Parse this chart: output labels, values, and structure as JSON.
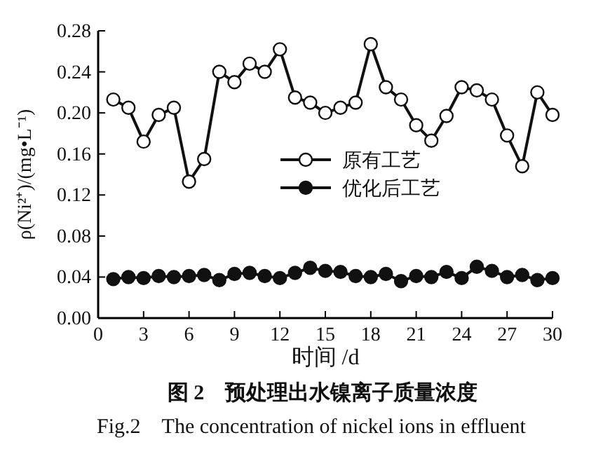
{
  "chart_data": {
    "type": "line",
    "title": "图 2　预处理出水镍离子质量浓度",
    "subtitle": "Fig.2　The concentration of nickel ions in effluent",
    "xlabel": "时间 /d",
    "ylabel": "ρ(Ni²⁺)/(mg•L⁻¹)",
    "x": [
      1,
      2,
      3,
      4,
      5,
      6,
      7,
      8,
      9,
      10,
      11,
      12,
      13,
      14,
      15,
      16,
      17,
      18,
      19,
      20,
      21,
      22,
      23,
      24,
      25,
      26,
      27,
      28,
      29,
      30
    ],
    "series": [
      {
        "name": "原有工艺",
        "color": "#111111",
        "marker": "circle",
        "values": [
          0.213,
          0.205,
          0.172,
          0.198,
          0.205,
          0.133,
          0.155,
          0.24,
          0.23,
          0.248,
          0.24,
          0.262,
          0.215,
          0.21,
          0.2,
          0.205,
          0.21,
          0.267,
          0.225,
          0.213,
          0.188,
          0.173,
          0.197,
          0.225,
          0.222,
          0.213,
          0.178,
          0.148,
          0.22,
          0.198
        ]
      },
      {
        "name": "优化后工艺",
        "color": "#111111",
        "marker": "circle",
        "values": [
          0.038,
          0.04,
          0.039,
          0.041,
          0.04,
          0.041,
          0.042,
          0.037,
          0.043,
          0.044,
          0.041,
          0.039,
          0.044,
          0.049,
          0.046,
          0.045,
          0.041,
          0.04,
          0.043,
          0.036,
          0.041,
          0.04,
          0.045,
          0.039,
          0.05,
          0.046,
          0.04,
          0.042,
          0.037,
          0.039
        ]
      }
    ],
    "xlim": [
      0,
      30
    ],
    "xticks": [
      0,
      3,
      6,
      9,
      12,
      15,
      18,
      21,
      24,
      27,
      30
    ],
    "ylim": [
      0,
      0.28
    ],
    "yticks": [
      {
        "value": 0,
        "label": "0.00"
      },
      {
        "value": 0.04,
        "label": "0.04"
      },
      {
        "value": 0.08,
        "label": "0.08"
      },
      {
        "value": 0.12,
        "label": "0.12"
      },
      {
        "value": 0.16,
        "label": "0.16"
      },
      {
        "value": 0.2,
        "label": "0.20"
      },
      {
        "value": 0.24,
        "label": "0.24"
      },
      {
        "value": 0.28,
        "label": "0.28"
      }
    ],
    "legend": "center",
    "grid": false,
    "line_style": "solid"
  }
}
